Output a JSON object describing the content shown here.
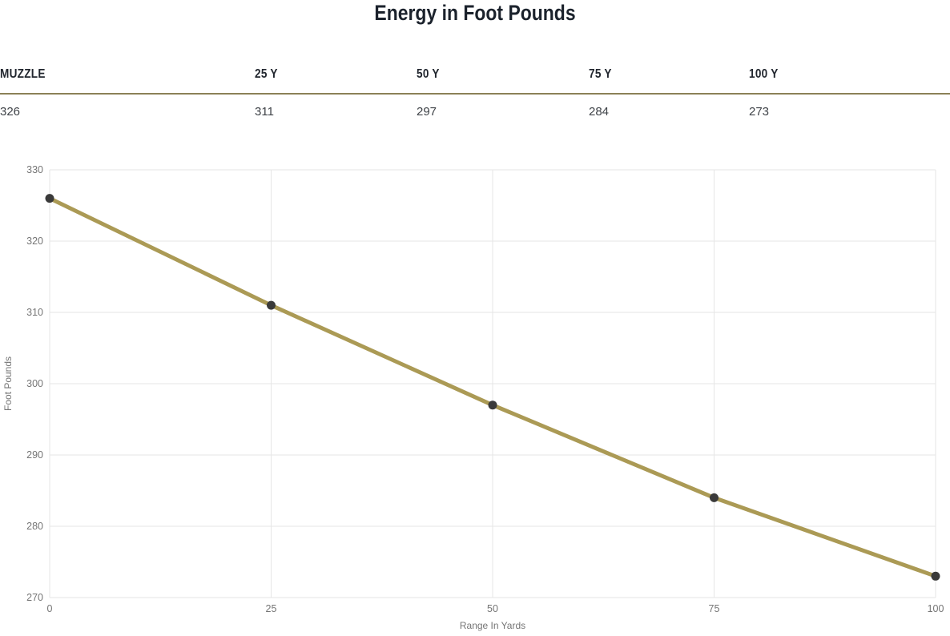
{
  "title": "Energy in Foot Pounds",
  "table": {
    "columns": [
      "MUZZLE",
      "25 Y",
      "50 Y",
      "75 Y",
      "100 Y"
    ],
    "values": [
      "326",
      "311",
      "297",
      "284",
      "273"
    ]
  },
  "chart_data": {
    "type": "line",
    "x": [
      0,
      25,
      50,
      75,
      100
    ],
    "series": [
      {
        "name": "Foot Pounds",
        "values": [
          326,
          311,
          297,
          284,
          273
        ],
        "line_color": "#ab9a55",
        "point_color": "#3a3a3a"
      }
    ],
    "title": "",
    "xlabel": "Range In Yards",
    "ylabel": "Foot Pounds",
    "xlim": [
      0,
      100
    ],
    "ylim": [
      270,
      330
    ],
    "xticks": [
      0,
      25,
      50,
      75,
      100
    ],
    "yticks": [
      270,
      280,
      290,
      300,
      310,
      320,
      330
    ],
    "grid": true,
    "legend_position": "none",
    "gridline_color": "#e6e6e6",
    "tick_text_color": "#757575",
    "axis_title_color": "#757575"
  },
  "colors": {
    "divider": "#8b8157",
    "title_text": "#1b222c",
    "header_text": "#21262e",
    "value_text": "#3e4247",
    "background": "#ffffff"
  }
}
